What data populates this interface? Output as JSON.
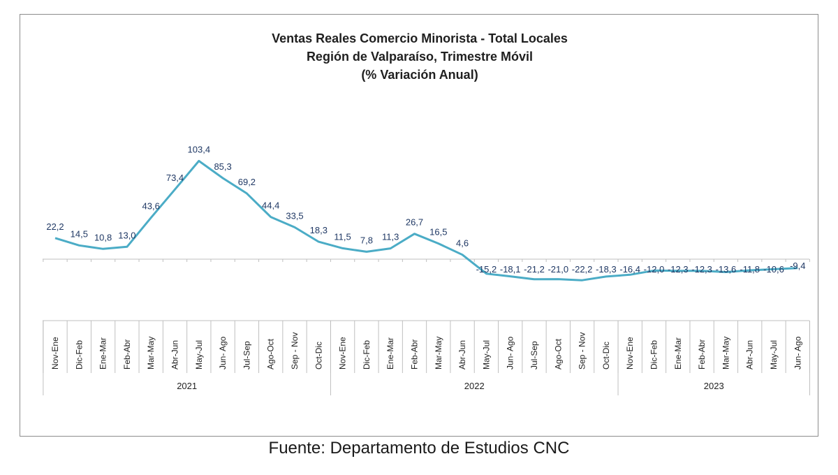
{
  "chart_data": {
    "type": "line",
    "title": [
      "Ventas Reales Comercio Minorista - Total Locales",
      "Región de Valparaíso, Trimestre Móvil",
      "(% Variación Anual)"
    ],
    "categories": [
      "Nov-Ene",
      "Dic-Feb",
      "Ene-Mar",
      "Feb-Abr",
      "Mar-May",
      "Abr-Jun",
      "May-Jul",
      "Jun- Ago",
      "Jul-Sep",
      "Ago-Oct",
      "Sep - Nov",
      "Oct-Dic",
      "Nov-Ene",
      "Dic-Feb",
      "Ene-Mar",
      "Feb-Abr",
      "Mar-May",
      "Abr-Jun",
      "May-Jul",
      "Jun- Ago",
      "Jul-Sep",
      "Ago-Oct",
      "Sep - Nov",
      "Oct-Dic",
      "Nov-Ene",
      "Dic-Feb",
      "Ene-Mar",
      "Feb-Abr",
      "Mar-May",
      "Abr-Jun",
      "May-Jul",
      "Jun- Ago"
    ],
    "years": [
      {
        "label": "2021",
        "start": 0,
        "end": 11
      },
      {
        "label": "2022",
        "start": 12,
        "end": 23
      },
      {
        "label": "2023",
        "start": 24,
        "end": 31
      }
    ],
    "series": [
      {
        "values": [
          22.2,
          14.5,
          10.8,
          13.0,
          43.6,
          73.4,
          103.4,
          85.3,
          69.2,
          44.4,
          33.5,
          18.3,
          11.5,
          7.8,
          11.3,
          26.7,
          16.5,
          4.6,
          -15.2,
          -18.1,
          -21.2,
          -21.0,
          -22.2,
          -18.3,
          -16.4,
          -12.0,
          -12.3,
          -12.3,
          -13.6,
          -11.8,
          -10.6,
          -9.4
        ],
        "labels": [
          "22,2",
          "14,5",
          "10,8",
          "13,0",
          "43,6",
          "73,4",
          "103,4",
          "85,3",
          "69,2",
          "44,4",
          "33,5",
          "18,3",
          "11,5",
          "7,8",
          "11,3",
          "26,7",
          "16,5",
          "4,6",
          "-15,2",
          "-18,1",
          "-21,2",
          "-21,0",
          "-22,2",
          "-18,3",
          "-16,4",
          "-12,0",
          "-12,3",
          "-12,3",
          "-13,6",
          "-11,8",
          "-10,6",
          "-9,4"
        ],
        "color": "#4bacc6"
      }
    ],
    "axis_color": "#bfbfbf",
    "label_color": "#1f3864",
    "grid": false,
    "legend": "none"
  },
  "source": "Fuente: Departamento de Estudios CNC"
}
